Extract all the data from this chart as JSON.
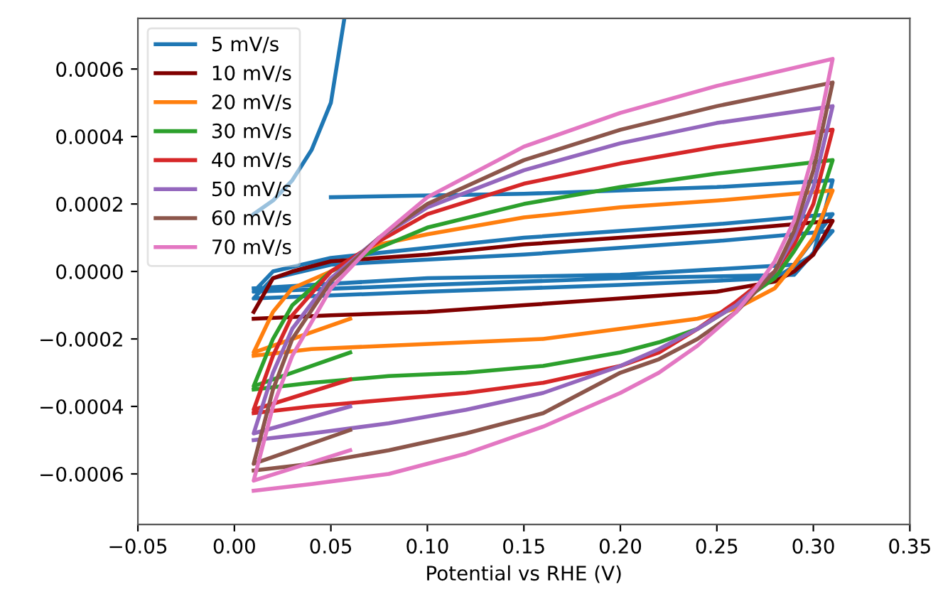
{
  "chart_data": {
    "type": "line",
    "xlabel": "Potential vs RHE (V)",
    "xlim": [
      -0.05,
      0.35
    ],
    "ylim": [
      -0.00075,
      0.00075
    ],
    "xticks": [
      {
        "value": -0.05,
        "label": "−0.05"
      },
      {
        "value": 0.0,
        "label": "0.00"
      },
      {
        "value": 0.05,
        "label": "0.05"
      },
      {
        "value": 0.1,
        "label": "0.10"
      },
      {
        "value": 0.15,
        "label": "0.15"
      },
      {
        "value": 0.2,
        "label": "0.20"
      },
      {
        "value": 0.25,
        "label": "0.25"
      },
      {
        "value": 0.3,
        "label": "0.30"
      },
      {
        "value": 0.35,
        "label": "0.35"
      }
    ],
    "yticks": [
      {
        "value": -0.0006,
        "label": "−0.0006"
      },
      {
        "value": -0.0004,
        "label": "−0.0004"
      },
      {
        "value": -0.0002,
        "label": "−0.0002"
      },
      {
        "value": 0.0,
        "label": "0.0000"
      },
      {
        "value": 0.0002,
        "label": "0.0002"
      },
      {
        "value": 0.0004,
        "label": "0.0004"
      },
      {
        "value": 0.0006,
        "label": "0.0006"
      }
    ],
    "grid": false,
    "legend": "top left",
    "marker": "none",
    "line_style": "solid",
    "series": [
      {
        "name": "5 mV/s",
        "color": "#1f77b4",
        "x": [
          0.057,
          0.05,
          0.04,
          0.03,
          0.02,
          0.01,
          null,
          0.05,
          0.15,
          0.25,
          0.31,
          0.3,
          0.28,
          0.2,
          0.1,
          0.01,
          0.02,
          0.05,
          0.15,
          0.25,
          0.31,
          0.29,
          0.2,
          0.1,
          0.01,
          0.02,
          0.05,
          0.15,
          0.25,
          0.31,
          0.29,
          0.2,
          0.1,
          0.01
        ],
        "values": [
          0.00075,
          0.0005,
          0.00036,
          0.00027,
          0.00021,
          0.00017,
          null,
          0.00022,
          0.00023,
          0.00025,
          0.00027,
          5e-05,
          -2e-05,
          -4e-05,
          -6e-05,
          -8e-05,
          -2e-05,
          2e-05,
          5e-05,
          9e-05,
          0.00012,
          -1e-05,
          -2e-05,
          -4e-05,
          -6e-05,
          0.0,
          4e-05,
          0.0001,
          0.00014,
          0.00017,
          2e-05,
          -1e-05,
          -2e-05,
          -5e-05
        ]
      },
      {
        "name": "10 mV/s",
        "color": "#800000",
        "x": [
          0.01,
          0.02,
          0.03,
          0.05,
          0.1,
          0.15,
          0.2,
          0.25,
          0.31,
          0.3,
          0.29,
          0.28,
          0.25,
          0.2,
          0.15,
          0.1,
          0.05,
          0.01
        ],
        "values": [
          -0.00012,
          -2e-05,
          0.0,
          3e-05,
          5e-05,
          8e-05,
          0.0001,
          0.00012,
          0.00015,
          5e-05,
          0.0,
          -3e-05,
          -6e-05,
          -8e-05,
          -0.0001,
          -0.00012,
          -0.00013,
          -0.00014
        ]
      },
      {
        "name": "20 mV/s",
        "color": "#ff7f0e",
        "x": [
          0.06,
          0.01,
          0.02,
          0.03,
          0.05,
          0.075,
          0.1,
          0.15,
          0.2,
          0.25,
          0.31,
          0.3,
          0.29,
          0.28,
          0.26,
          0.24,
          0.2,
          0.16,
          0.12,
          0.08,
          0.04,
          0.01
        ],
        "values": [
          -0.00014,
          -0.00024,
          -0.00012,
          -5e-05,
          0.0,
          8e-05,
          0.00011,
          0.00016,
          0.00019,
          0.00021,
          0.00024,
          0.0001,
          2e-05,
          -5e-05,
          -0.00011,
          -0.00014,
          -0.00017,
          -0.0002,
          -0.00021,
          -0.00022,
          -0.00023,
          -0.00025
        ]
      },
      {
        "name": "30 mV/s",
        "color": "#2ca02c",
        "x": [
          0.06,
          0.01,
          0.02,
          0.03,
          0.05,
          0.075,
          0.1,
          0.15,
          0.2,
          0.25,
          0.31,
          0.3,
          0.29,
          0.28,
          0.26,
          0.24,
          0.22,
          0.2,
          0.16,
          0.12,
          0.08,
          0.04,
          0.01
        ],
        "values": [
          -0.00024,
          -0.00034,
          -0.0002,
          -0.0001,
          0.0,
          7e-05,
          0.00013,
          0.0002,
          0.00025,
          0.00029,
          0.00033,
          0.00015,
          6e-05,
          -2e-05,
          -0.0001,
          -0.00017,
          -0.00021,
          -0.00024,
          -0.00028,
          -0.0003,
          -0.00031,
          -0.00033,
          -0.00035
        ]
      },
      {
        "name": "40 mV/s",
        "color": "#d62728",
        "x": [
          0.06,
          0.01,
          0.02,
          0.03,
          0.05,
          0.075,
          0.1,
          0.15,
          0.2,
          0.25,
          0.31,
          0.3,
          0.29,
          0.28,
          0.26,
          0.24,
          0.22,
          0.2,
          0.16,
          0.12,
          0.08,
          0.04,
          0.01
        ],
        "values": [
          -0.00032,
          -0.00041,
          -0.00025,
          -0.00013,
          0.0,
          9e-05,
          0.00017,
          0.00026,
          0.00032,
          0.00037,
          0.00042,
          0.0002,
          8e-05,
          0.0,
          -9e-05,
          -0.00017,
          -0.00024,
          -0.00028,
          -0.00033,
          -0.00036,
          -0.00038,
          -0.0004,
          -0.00042
        ]
      },
      {
        "name": "50 mV/s",
        "color": "#9467bd",
        "x": [
          0.06,
          0.01,
          0.02,
          0.03,
          0.05,
          0.075,
          0.1,
          0.15,
          0.2,
          0.25,
          0.31,
          0.3,
          0.29,
          0.28,
          0.26,
          0.24,
          0.22,
          0.2,
          0.16,
          0.12,
          0.08,
          0.04,
          0.01
        ],
        "values": [
          -0.0004,
          -0.00048,
          -0.0003,
          -0.00017,
          -2e-05,
          0.0001,
          0.00019,
          0.0003,
          0.00038,
          0.00044,
          0.00049,
          0.00025,
          0.0001,
          0.0,
          -0.0001,
          -0.00017,
          -0.00023,
          -0.00028,
          -0.00036,
          -0.00041,
          -0.00045,
          -0.00048,
          -0.0005
        ]
      },
      {
        "name": "60 mV/s",
        "color": "#8c564b",
        "x": [
          0.06,
          0.01,
          0.02,
          0.03,
          0.05,
          0.075,
          0.1,
          0.15,
          0.2,
          0.25,
          0.31,
          0.3,
          0.29,
          0.28,
          0.26,
          0.24,
          0.22,
          0.2,
          0.16,
          0.12,
          0.08,
          0.04,
          0.01
        ],
        "values": [
          -0.00047,
          -0.00057,
          -0.00035,
          -0.0002,
          -3e-05,
          0.0001,
          0.0002,
          0.00033,
          0.00042,
          0.00049,
          0.00056,
          0.0003,
          0.00012,
          0.0,
          -0.00012,
          -0.0002,
          -0.00026,
          -0.0003,
          -0.00042,
          -0.00048,
          -0.00053,
          -0.00057,
          -0.00059
        ]
      },
      {
        "name": "70 mV/s",
        "color": "#e377c2",
        "x": [
          0.06,
          0.01,
          0.02,
          0.03,
          0.05,
          0.075,
          0.1,
          0.15,
          0.2,
          0.25,
          0.31,
          0.3,
          0.29,
          0.28,
          0.27,
          0.26,
          0.24,
          0.22,
          0.2,
          0.16,
          0.12,
          0.08,
          0.04,
          0.01
        ],
        "values": [
          -0.00053,
          -0.00062,
          -0.0004,
          -0.00025,
          -5e-05,
          0.0001,
          0.00022,
          0.00037,
          0.00047,
          0.00055,
          0.00063,
          0.00035,
          0.00015,
          3e-05,
          -5e-05,
          -0.00012,
          -0.00022,
          -0.0003,
          -0.00036,
          -0.00046,
          -0.00054,
          -0.0006,
          -0.00063,
          -0.00065
        ]
      }
    ]
  }
}
